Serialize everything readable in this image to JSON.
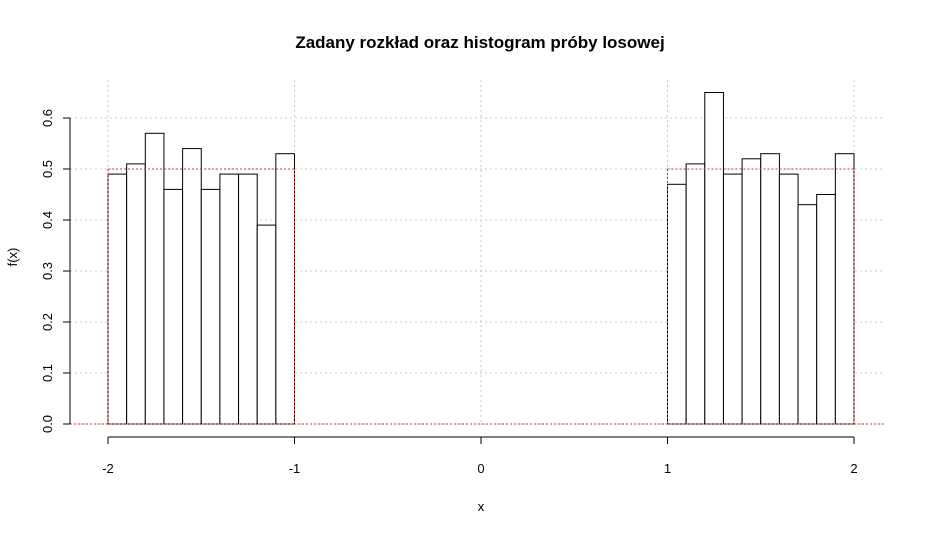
{
  "chart_data": {
    "type": "bar",
    "title": "Zadany rozkład oraz histogram próby losowej",
    "xlabel": "x",
    "ylabel": "f(x)",
    "xlim": [
      -2,
      2
    ],
    "ylim": [
      0,
      0.6
    ],
    "x_ticks": [
      -2,
      -1,
      0,
      1,
      2
    ],
    "x_tick_labels": [
      "-2",
      "-1",
      "0",
      "1",
      "2"
    ],
    "y_ticks": [
      0.0,
      0.1,
      0.2,
      0.3,
      0.4,
      0.5,
      0.6
    ],
    "y_tick_labels": [
      "0.0",
      "0.1",
      "0.2",
      "0.3",
      "0.4",
      "0.5",
      "0.6"
    ],
    "grid": true,
    "histogram": {
      "bin_width": 0.1,
      "bins": [
        {
          "start": -2.0,
          "end": -1.9,
          "density": 0.49
        },
        {
          "start": -1.9,
          "end": -1.8,
          "density": 0.51
        },
        {
          "start": -1.8,
          "end": -1.7,
          "density": 0.57
        },
        {
          "start": -1.7,
          "end": -1.6,
          "density": 0.46
        },
        {
          "start": -1.6,
          "end": -1.5,
          "density": 0.54
        },
        {
          "start": -1.5,
          "end": -1.4,
          "density": 0.46
        },
        {
          "start": -1.4,
          "end": -1.3,
          "density": 0.49
        },
        {
          "start": -1.3,
          "end": -1.2,
          "density": 0.49
        },
        {
          "start": -1.2,
          "end": -1.1,
          "density": 0.39
        },
        {
          "start": -1.1,
          "end": -1.0,
          "density": 0.53
        },
        {
          "start": 1.0,
          "end": 1.1,
          "density": 0.47
        },
        {
          "start": 1.1,
          "end": 1.2,
          "density": 0.51
        },
        {
          "start": 1.2,
          "end": 1.3,
          "density": 0.65
        },
        {
          "start": 1.3,
          "end": 1.4,
          "density": 0.49
        },
        {
          "start": 1.4,
          "end": 1.5,
          "density": 0.52
        },
        {
          "start": 1.5,
          "end": 1.6,
          "density": 0.53
        },
        {
          "start": 1.6,
          "end": 1.7,
          "density": 0.49
        },
        {
          "start": 1.7,
          "end": 1.8,
          "density": 0.43
        },
        {
          "start": 1.8,
          "end": 1.9,
          "density": 0.45
        },
        {
          "start": 1.9,
          "end": 2.0,
          "density": 0.53
        }
      ]
    },
    "density": {
      "segments": [
        {
          "x_start": -2.0,
          "x_end": -1.0,
          "value": 0.5
        },
        {
          "x_start": 1.0,
          "x_end": 2.0,
          "value": 0.5
        }
      ],
      "elsewhere": 0.0
    },
    "colors": {
      "bars_fill": "#ffffff",
      "bars_stroke": "#000000",
      "density": "#e0303a",
      "grid": "#c8c8c8"
    }
  }
}
